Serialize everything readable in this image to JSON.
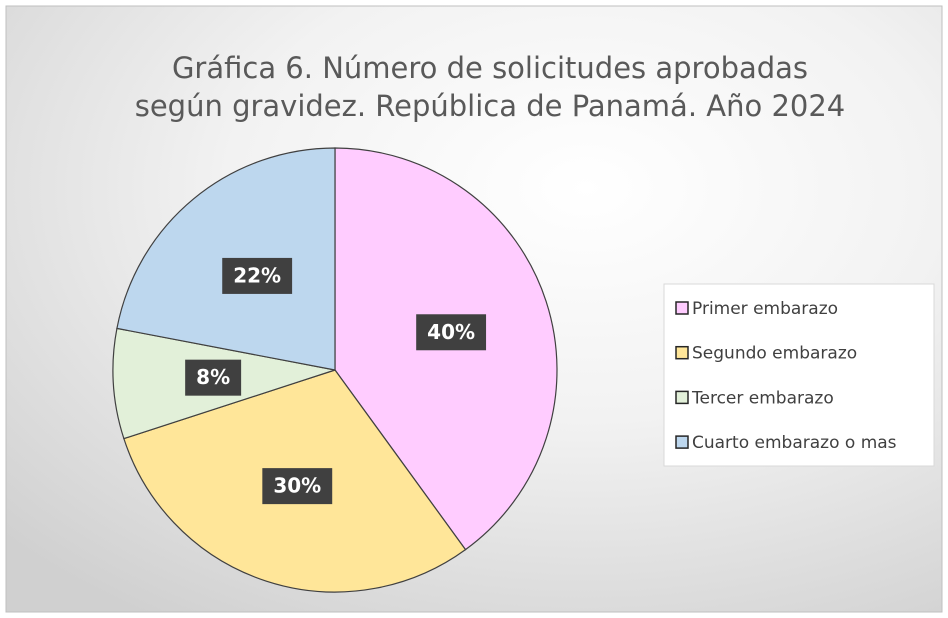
{
  "chart_data": {
    "type": "pie",
    "title": "Gráfica 6. Número de solicitudes aprobadas según gravidez. República de Panamá. Año 2024",
    "categories": [
      "Primer embarazo",
      "Segundo embarazo",
      "Tercer embarazo",
      "Cuarto embarazo o mas"
    ],
    "values": [
      40,
      30,
      8,
      22
    ],
    "value_labels": [
      "40%",
      "30%",
      "8%",
      "22%"
    ],
    "colors": [
      "#ffccff",
      "#ffe699",
      "#e2f0d9",
      "#bdd7ee"
    ],
    "legend": "right"
  }
}
